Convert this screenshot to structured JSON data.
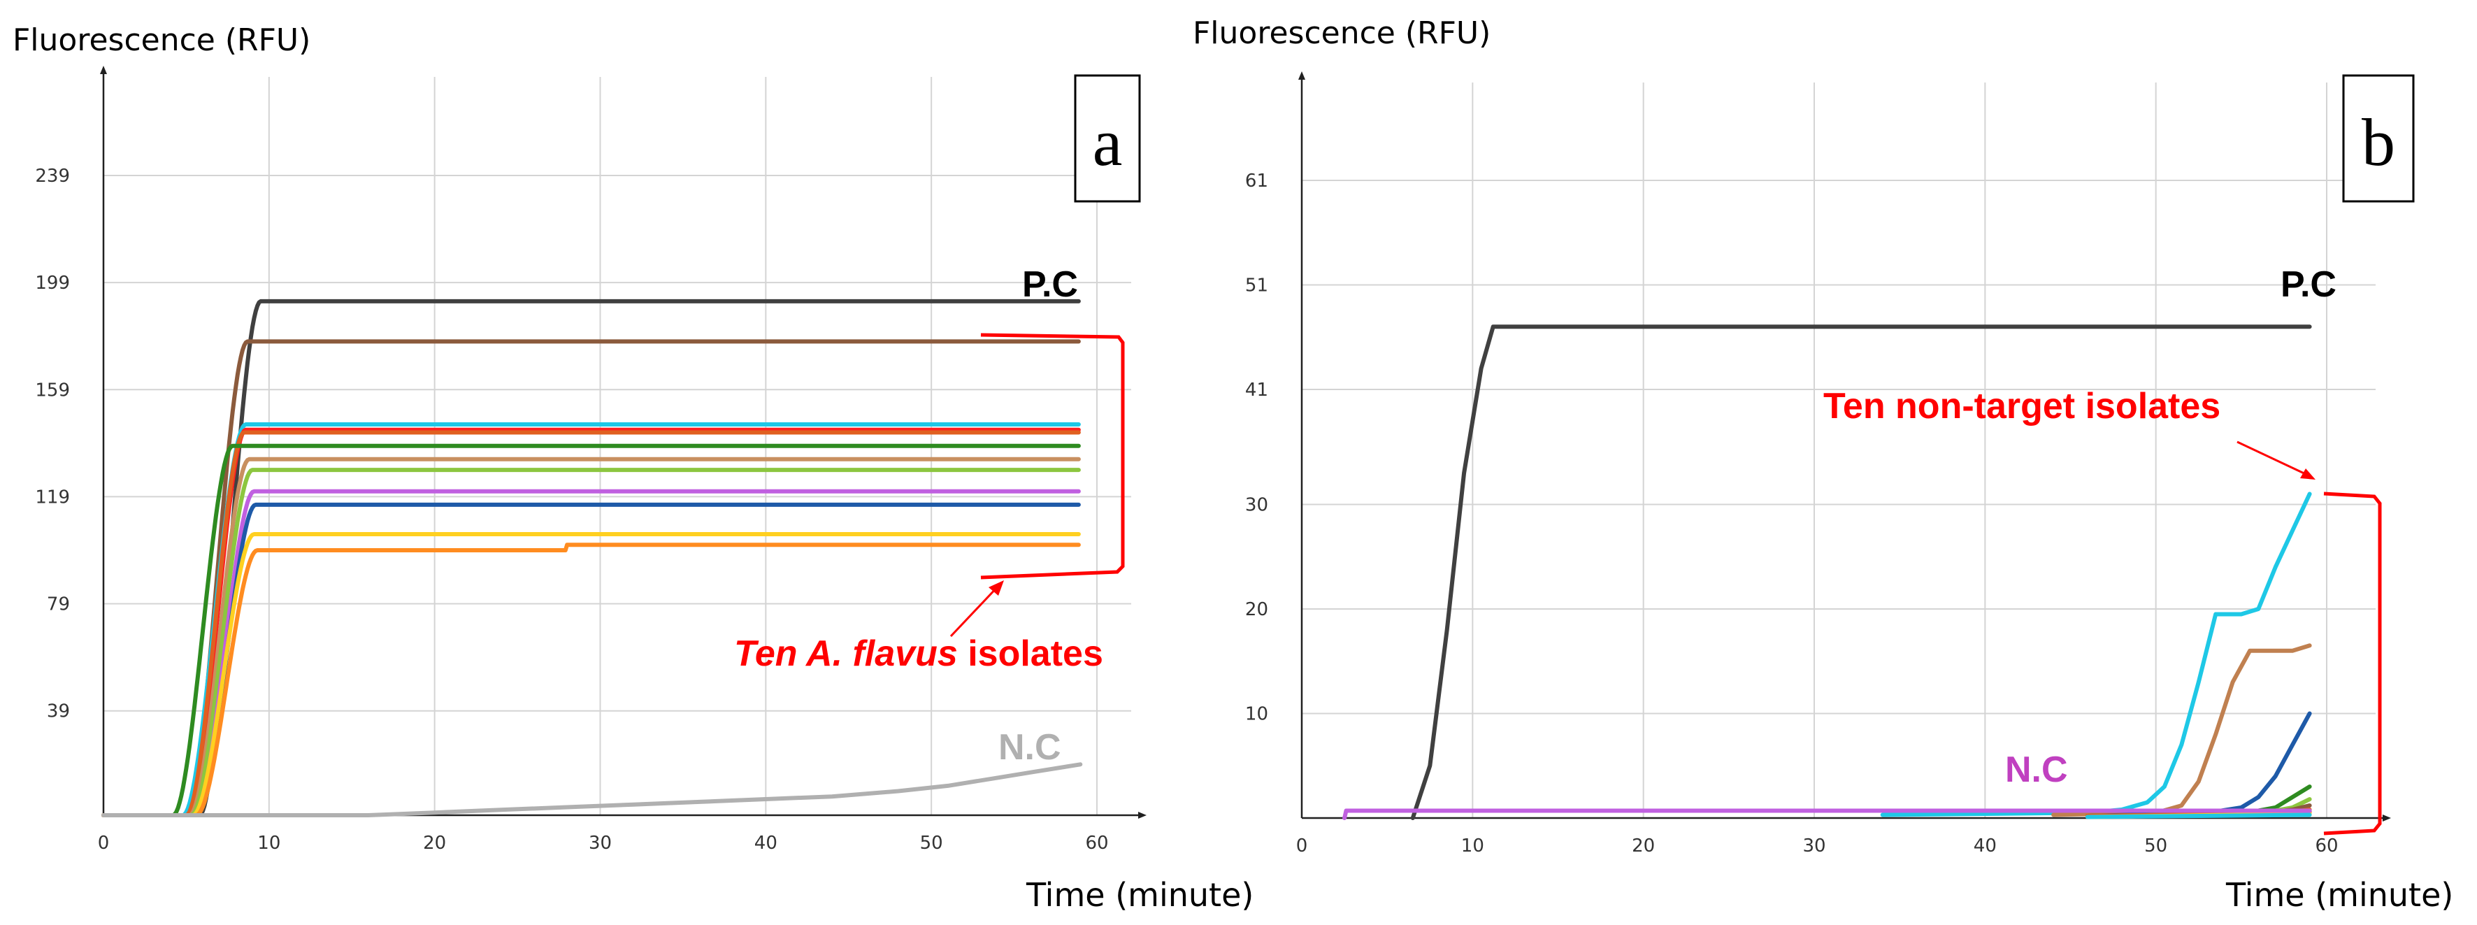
{
  "chart_data": [
    {
      "type": "line",
      "panel_label": "a",
      "ylabel": "Fluorescence (RFU)",
      "xlabel": "Time (minute)",
      "xlim": [
        0,
        62
      ],
      "ylim": [
        0,
        270
      ],
      "xticks": [
        0,
        10,
        20,
        30,
        40,
        50,
        60
      ],
      "yticks": [
        39,
        79,
        119,
        159,
        199,
        239
      ],
      "grid": true,
      "annotations": {
        "pc": "P.C",
        "nc": "N.C",
        "nc_color": "#b0b0b0",
        "isolates_italic": "Ten A. flavus",
        "isolates_rest": " isolates",
        "isolates_color": "#ff0000"
      },
      "series": [
        {
          "label": "P.C",
          "color": "#404040",
          "start": 5.8,
          "mid": 7.3,
          "k": 1.5,
          "plateau": 192,
          "drift": 0
        },
        {
          "color": "#8b5a3c",
          "start": 5.0,
          "mid": 6.5,
          "k": 1.3,
          "plateau": 177,
          "drift": 0
        },
        {
          "color": "#1ec8e6",
          "start": 4.8,
          "mid": 6.4,
          "k": 1.3,
          "plateau": 146,
          "drift": 0
        },
        {
          "color": "#ff2020",
          "start": 5.1,
          "mid": 6.4,
          "k": 1.4,
          "plateau": 144,
          "drift": 0
        },
        {
          "color": "#e06020",
          "start": 5.0,
          "mid": 6.3,
          "k": 1.4,
          "plateau": 143,
          "drift": 0
        },
        {
          "color": "#2e8b20",
          "start": 4.2,
          "mid": 5.6,
          "k": 1.2,
          "plateau": 138,
          "drift": 0
        },
        {
          "color": "#c89060",
          "start": 5.2,
          "mid": 6.6,
          "k": 1.4,
          "plateau": 133,
          "drift": 0
        },
        {
          "color": "#8cc63f",
          "start": 5.3,
          "mid": 6.8,
          "k": 1.4,
          "plateau": 129,
          "drift": 0
        },
        {
          "color": "#c060e0",
          "start": 5.5,
          "mid": 6.9,
          "k": 1.4,
          "plateau": 121,
          "drift": 0
        },
        {
          "color": "#1e5aa8",
          "start": 5.6,
          "mid": 7.0,
          "k": 1.4,
          "plateau": 116,
          "drift": 0
        },
        {
          "color": "#ffd020",
          "start": 5.4,
          "mid": 6.9,
          "k": 1.4,
          "plateau": 105,
          "drift": 0
        },
        {
          "color": "#ff8c20",
          "start": 5.6,
          "mid": 7.1,
          "k": 1.4,
          "plateau": 99,
          "drift": 2
        },
        {
          "label": "N.C",
          "color": "#b0b0b0",
          "start": 16,
          "mid": 0,
          "k": 0,
          "plateau": 0,
          "drift": 0,
          "flat": true,
          "points": [
            [
              0,
              0
            ],
            [
              16,
              0
            ],
            [
              20,
              1
            ],
            [
              24,
              2
            ],
            [
              28,
              3
            ],
            [
              32,
              4
            ],
            [
              36,
              5
            ],
            [
              40,
              6
            ],
            [
              44,
              7
            ],
            [
              48,
              9
            ],
            [
              51,
              11
            ],
            [
              54,
              14
            ],
            [
              56,
              16
            ],
            [
              59,
              19
            ]
          ]
        }
      ]
    },
    {
      "type": "line",
      "panel_label": "b",
      "ylabel": "Fluorescence (RFU)",
      "xlabel": "Time (minute)",
      "xlim": [
        0,
        62
      ],
      "ylim": [
        0,
        70
      ],
      "xticks": [
        0,
        10,
        20,
        30,
        40,
        50,
        60
      ],
      "yticks": [
        10,
        20,
        30,
        41,
        51,
        61
      ],
      "grid": true,
      "annotations": {
        "pc": "P.C",
        "nc": "N.C",
        "nc_color": "#c040c0",
        "isolates": "Ten non-target isolates",
        "isolates_color": "#ff0000"
      },
      "series": [
        {
          "label": "P.C",
          "color": "#404040",
          "points": [
            [
              6.5,
              0
            ],
            [
              7.5,
              5
            ],
            [
              8.5,
              18
            ],
            [
              9.5,
              33
            ],
            [
              10.5,
              43
            ],
            [
              11.2,
              47
            ],
            [
              12,
              47
            ],
            [
              59,
              47
            ]
          ]
        },
        {
          "color": "#1ec8e6",
          "points": [
            [
              34,
              0.3
            ],
            [
              46,
              0.5
            ],
            [
              48,
              0.8
            ],
            [
              49.5,
              1.5
            ],
            [
              50.5,
              3
            ],
            [
              51.5,
              7
            ],
            [
              52.5,
              13
            ],
            [
              53.5,
              19.5
            ],
            [
              55,
              19.5
            ],
            [
              56,
              20
            ],
            [
              57,
              24
            ],
            [
              58,
              27.5
            ],
            [
              59,
              31
            ]
          ]
        },
        {
          "color": "#c08050",
          "points": [
            [
              44,
              0.3
            ],
            [
              50,
              0.5
            ],
            [
              51.5,
              1.2
            ],
            [
              52.5,
              3.5
            ],
            [
              53.5,
              8
            ],
            [
              54.5,
              13
            ],
            [
              55.5,
              16
            ],
            [
              58,
              16
            ],
            [
              59,
              16.5
            ]
          ]
        },
        {
          "color": "#1e5aa8",
          "points": [
            [
              46,
              0.2
            ],
            [
              53,
              0.5
            ],
            [
              55,
              1
            ],
            [
              56,
              2
            ],
            [
              57,
              4
            ],
            [
              58,
              7
            ],
            [
              59,
              10
            ]
          ]
        },
        {
          "color": "#2e8b20",
          "points": [
            [
              46,
              0.2
            ],
            [
              55,
              0.4
            ],
            [
              57,
              1
            ],
            [
              58,
              2
            ],
            [
              59,
              3
            ]
          ]
        },
        {
          "color": "#8cc63f",
          "points": [
            [
              46,
              0.2
            ],
            [
              56,
              0.4
            ],
            [
              58,
              1
            ],
            [
              59,
              1.8
            ]
          ]
        },
        {
          "color": "#8b5a3c",
          "points": [
            [
              46,
              0.2
            ],
            [
              56,
              0.4
            ],
            [
              58,
              0.8
            ],
            [
              59,
              1.2
            ]
          ]
        },
        {
          "color": "#e06020",
          "points": [
            [
              46,
              0.2
            ],
            [
              57,
              0.4
            ],
            [
              59,
              0.8
            ]
          ]
        },
        {
          "color": "#ff2020",
          "points": [
            [
              46,
              0.1
            ],
            [
              57,
              0.3
            ],
            [
              59,
              0.6
            ]
          ]
        },
        {
          "color": "#ffd020",
          "points": [
            [
              46,
              0.1
            ],
            [
              59,
              0.4
            ]
          ]
        },
        {
          "color": "#1ec8e6",
          "points": [
            [
              46,
              0.1
            ],
            [
              59,
              0.3
            ]
          ]
        },
        {
          "label": "N.C",
          "color": "#c060e0",
          "points": [
            [
              2.5,
              0
            ],
            [
              2.6,
              0.7
            ],
            [
              59,
              0.7
            ]
          ]
        }
      ]
    }
  ]
}
